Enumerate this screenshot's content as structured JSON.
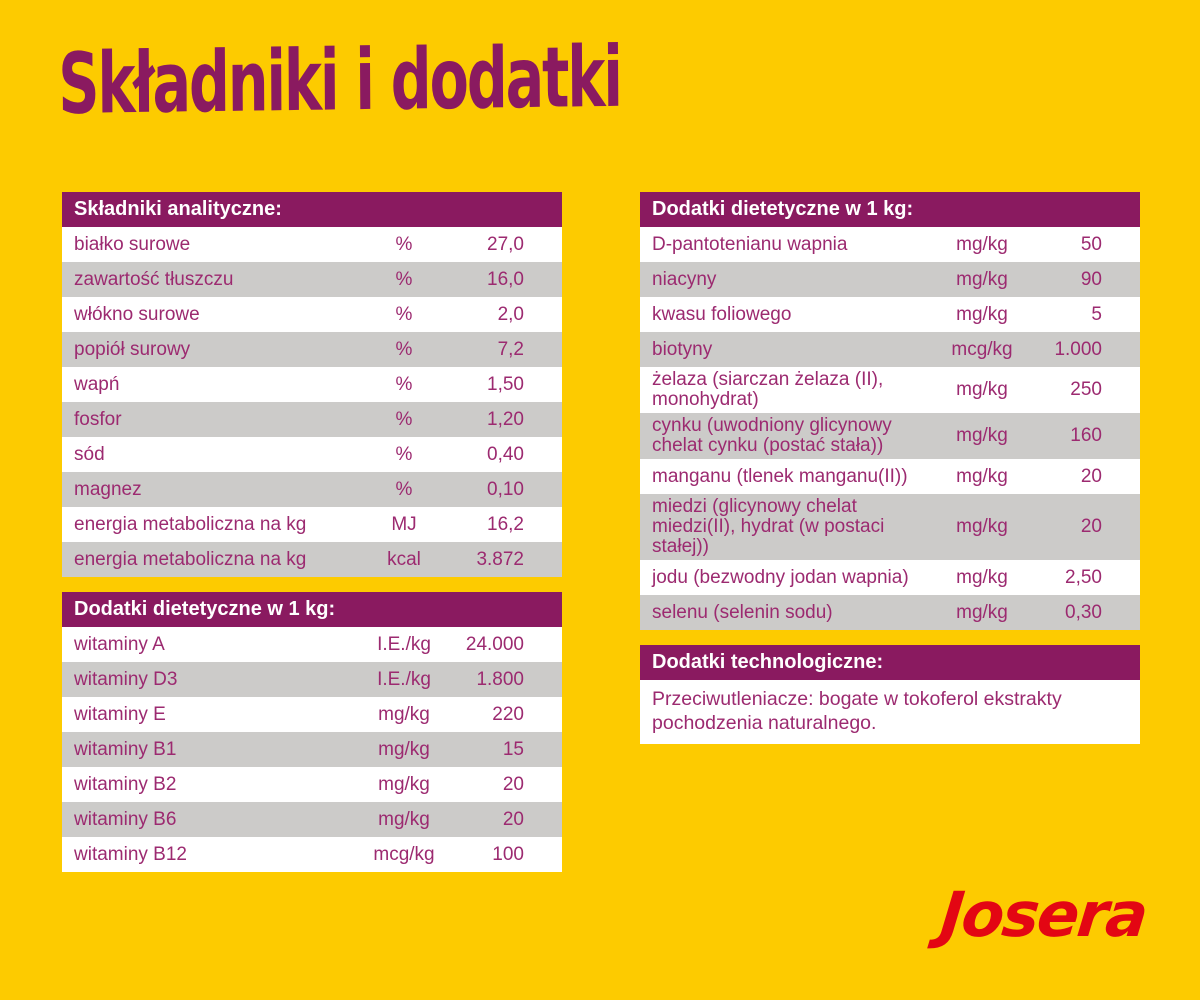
{
  "page": {
    "title": "Składniki i dodatki",
    "logo_text": "Josera"
  },
  "colors": {
    "bg": "#FDCB00",
    "accent": "#8A1A60",
    "text": "#9C2A70",
    "row": "#FFFFFF",
    "row-alt": "#CCCBC9",
    "logo-red": "#E30613"
  },
  "tables": {
    "analytical": {
      "header": "Składniki analityczne:",
      "rows": [
        {
          "label": "białko surowe",
          "unit": "%",
          "value": "27,0"
        },
        {
          "label": "zawartość tłuszczu",
          "unit": "%",
          "value": "16,0"
        },
        {
          "label": "włókno surowe",
          "unit": "%",
          "value": "2,0"
        },
        {
          "label": "popiół surowy",
          "unit": "%",
          "value": "7,2"
        },
        {
          "label": "wapń",
          "unit": "%",
          "value": "1,50"
        },
        {
          "label": "fosfor",
          "unit": "%",
          "value": "1,20"
        },
        {
          "label": "sód",
          "unit": "%",
          "value": "0,40"
        },
        {
          "label": "magnez",
          "unit": "%",
          "value": "0,10"
        },
        {
          "label": "energia metaboliczna na kg",
          "unit": "MJ",
          "value": "16,2"
        },
        {
          "label": "energia metaboliczna na kg",
          "unit": "kcal",
          "value": "3.872"
        }
      ]
    },
    "vitamins": {
      "header": "Dodatki dietetyczne w 1 kg:",
      "rows": [
        {
          "label": "witaminy A",
          "unit": "I.E./kg",
          "value": "24.000"
        },
        {
          "label": "witaminy D3",
          "unit": "I.E./kg",
          "value": "1.800"
        },
        {
          "label": "witaminy E",
          "unit": "mg/kg",
          "value": "220"
        },
        {
          "label": "witaminy B1",
          "unit": "mg/kg",
          "value": "15"
        },
        {
          "label": "witaminy B2",
          "unit": "mg/kg",
          "value": "20"
        },
        {
          "label": "witaminy B6",
          "unit": "mg/kg",
          "value": "20"
        },
        {
          "label": "witaminy B12",
          "unit": "mcg/kg",
          "value": "100"
        }
      ]
    },
    "minerals": {
      "header": "Dodatki dietetyczne w 1 kg:",
      "rows": [
        {
          "label": "D-pantotenianu wapnia",
          "unit": "mg/kg",
          "value": "50"
        },
        {
          "label": "niacyny",
          "unit": "mg/kg",
          "value": "90"
        },
        {
          "label": "kwasu foliowego",
          "unit": "mg/kg",
          "value": "5"
        },
        {
          "label": "biotyny",
          "unit": "mcg/kg",
          "value": "1.000"
        },
        {
          "label": "żelaza (siarczan żelaza (II), monohydrat)",
          "unit": "mg/kg",
          "value": "250"
        },
        {
          "label": "cynku (uwodniony glicynowy chelat cynku (postać stała))",
          "unit": "mg/kg",
          "value": "160"
        },
        {
          "label": "manganu (tlenek manganu(II))",
          "unit": "mg/kg",
          "value": "20"
        },
        {
          "label": "miedzi (glicynowy chelat miedzi(II), hydrat (w postaci stałej))",
          "unit": "mg/kg",
          "value": "20"
        },
        {
          "label": "jodu (bezwodny jodan wapnia)",
          "unit": "mg/kg",
          "value": "2,50"
        },
        {
          "label": "selenu (selenin sodu)",
          "unit": "mg/kg",
          "value": "0,30"
        }
      ]
    },
    "technological": {
      "header": "Dodatki technologiczne:",
      "body": "Przeciwutleniacze: bogate w tokoferol ekstrakty pochodzenia naturalnego."
    }
  }
}
